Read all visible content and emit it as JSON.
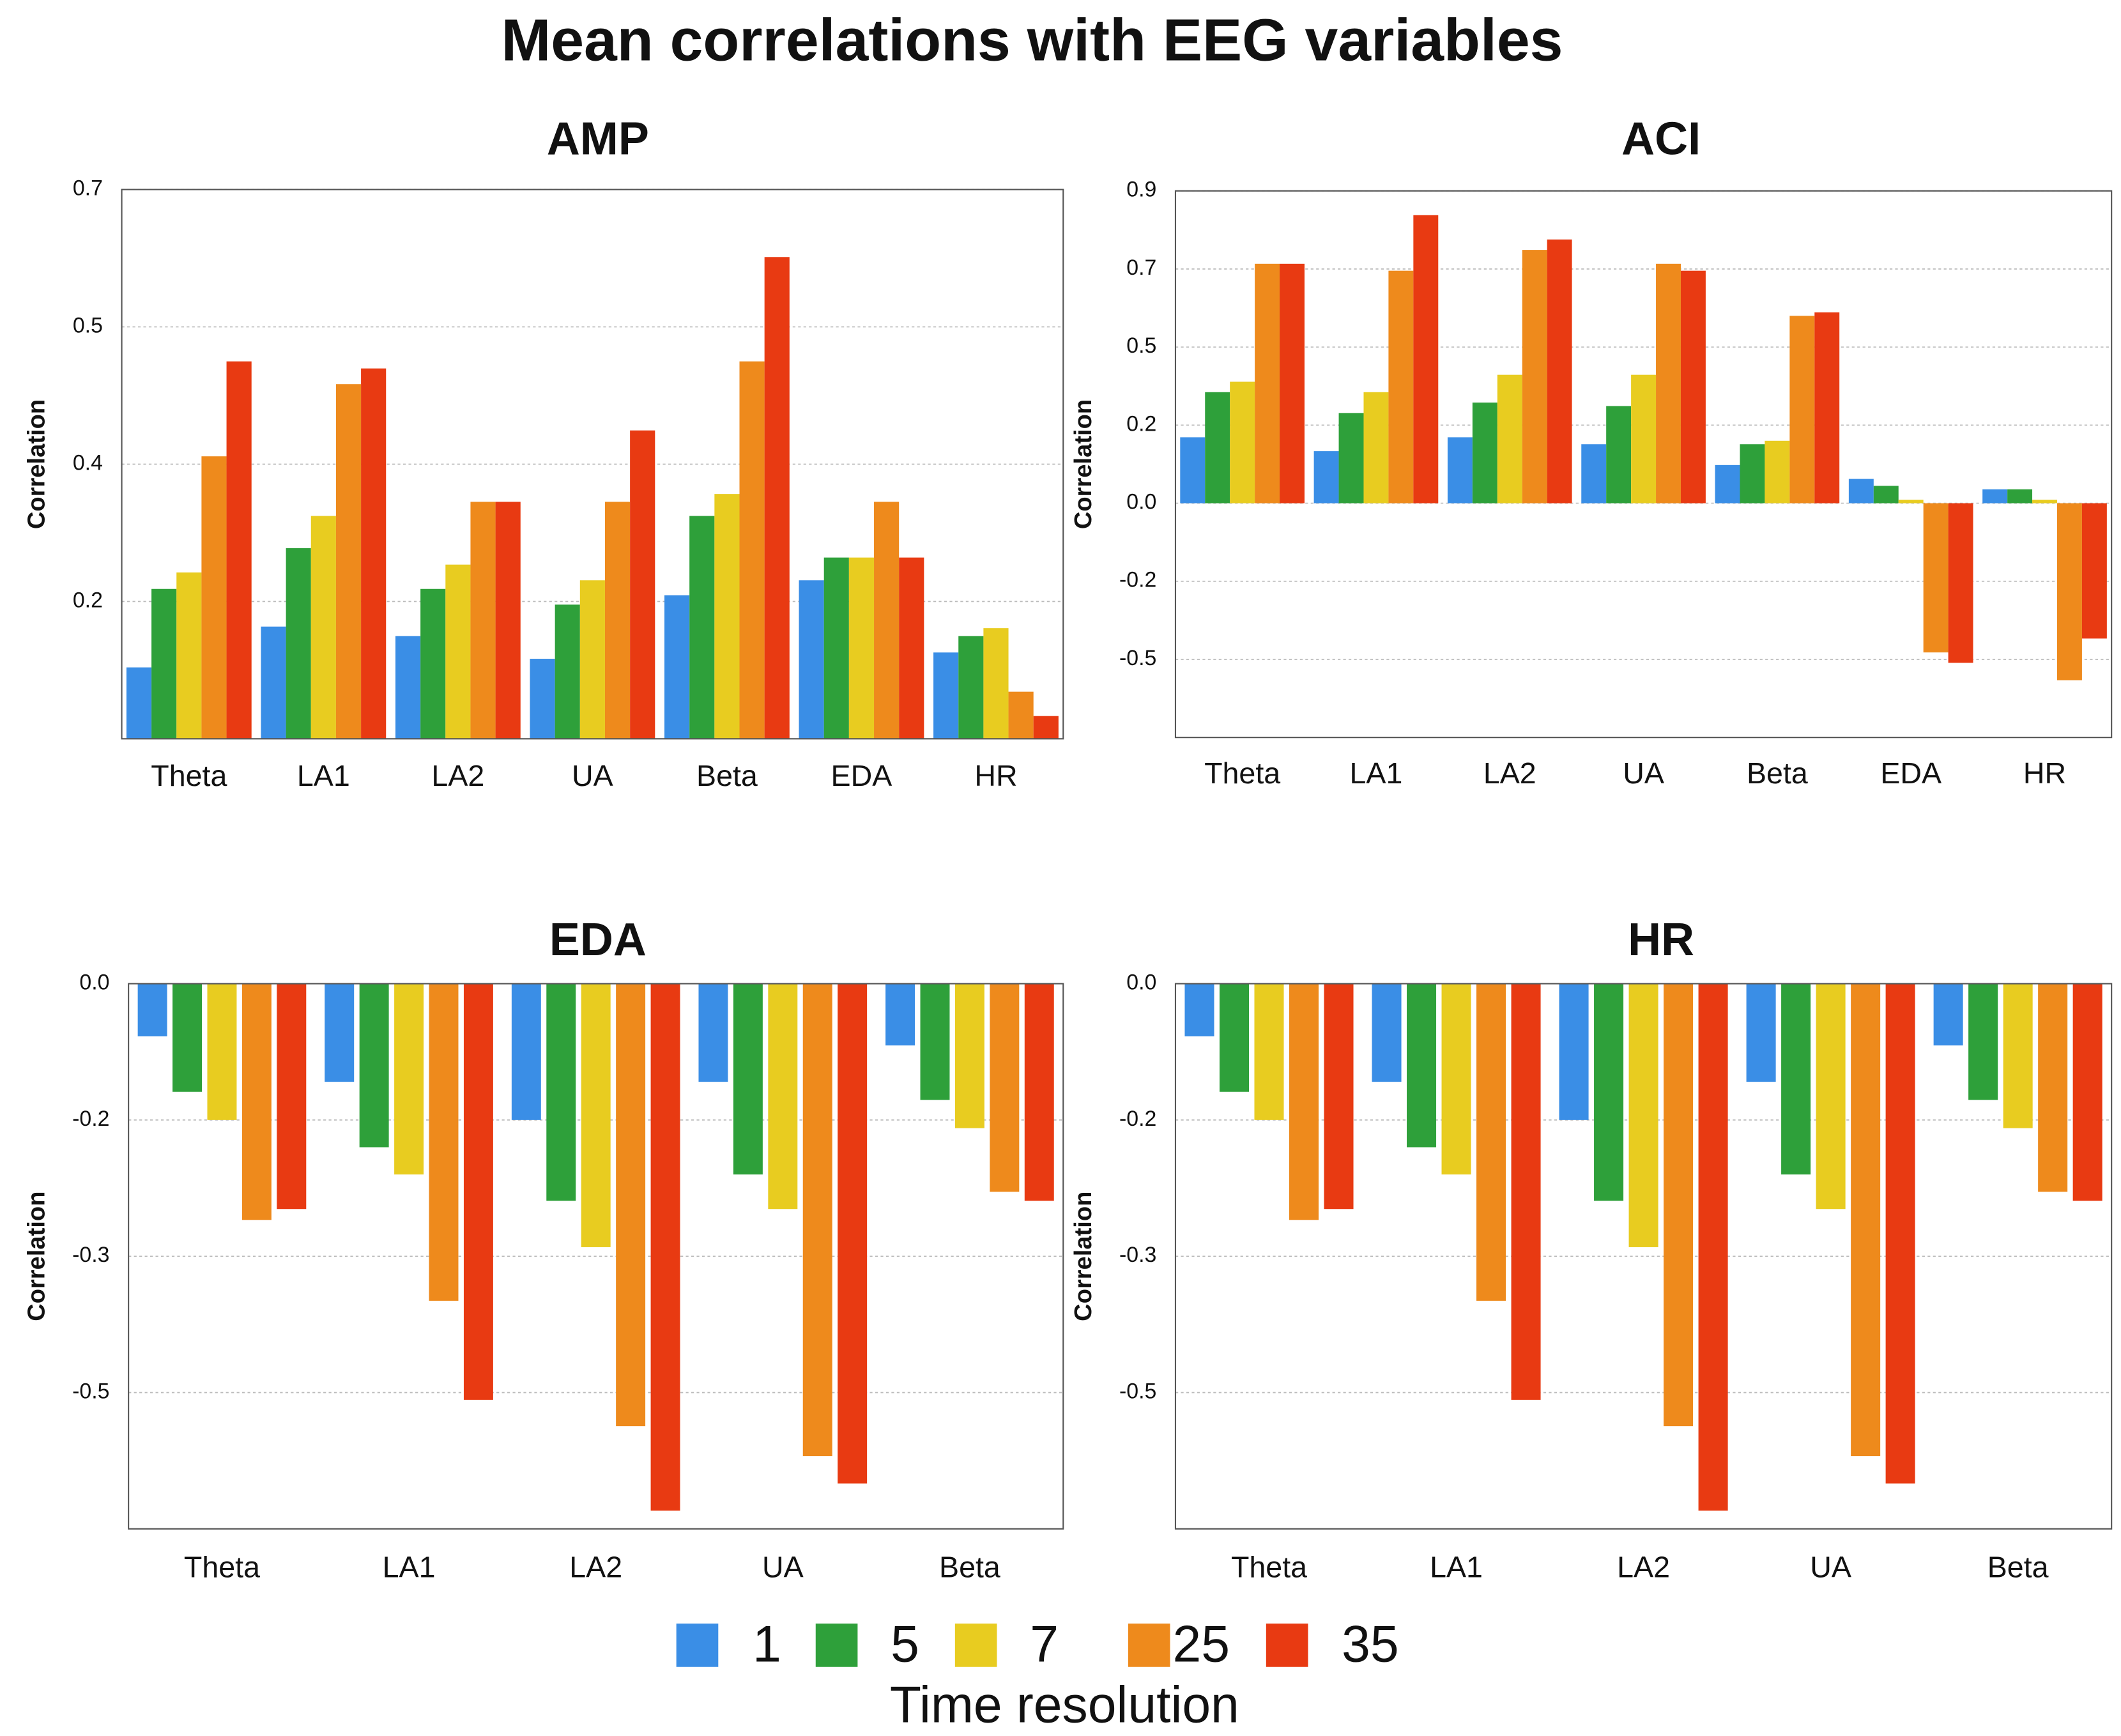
{
  "title": "Mean correlations with EEG variables",
  "legend_title": "Time resolution",
  "chart_data": [
    {
      "type": "bar",
      "title": "AMP",
      "y_label": "Correlation",
      "categories": [
        "Theta",
        "LA1",
        "LA2",
        "UA",
        "Beta",
        "EDA",
        "HR"
      ],
      "ylim": [
        0,
        0.7
      ],
      "yticks": [
        {
          "value": 0.175,
          "label": "0.2"
        },
        {
          "value": 0.35,
          "label": "0.4"
        },
        {
          "value": 0.525,
          "label": "0.5"
        },
        0.7
      ],
      "grid": true,
      "series": [
        {
          "name": "1",
          "color": "#3a8ee6",
          "values": [
            0.091,
            0.143,
            0.131,
            0.102,
            0.183,
            0.202,
            0.11
          ]
        },
        {
          "name": "5",
          "color": "#2ea03a",
          "values": [
            0.191,
            0.243,
            0.191,
            0.171,
            0.284,
            0.231,
            0.131
          ]
        },
        {
          "name": "7",
          "color": "#e8cc20",
          "values": [
            0.212,
            0.284,
            0.222,
            0.202,
            0.312,
            0.231,
            0.141
          ]
        },
        {
          "name": "25",
          "color": "#ee8a1c",
          "values": [
            0.36,
            0.452,
            0.302,
            0.302,
            0.481,
            0.302,
            0.06
          ]
        },
        {
          "name": "35",
          "color": "#e83a12",
          "values": [
            0.481,
            0.472,
            0.302,
            0.393,
            0.614,
            0.231,
            0.029
          ]
        }
      ]
    },
    {
      "type": "bar",
      "title": "ACI",
      "y_label": "Correlation",
      "categories": [
        "Theta",
        "LA1",
        "LA2",
        "UA",
        "Beta",
        "EDA",
        "HR"
      ],
      "ylim": [
        -0.675,
        0.9
      ],
      "yticks": [
        {
          "value": -0.45,
          "label": "-0.5"
        },
        {
          "value": -0.225,
          "label": "-0.2"
        },
        {
          "value": 0,
          "label": "0.0"
        },
        {
          "value": 0.225,
          "label": "0.2"
        },
        {
          "value": 0.45,
          "label": "0.5"
        },
        {
          "value": 0.675,
          "label": "0.7"
        },
        0.9
      ],
      "grid": true,
      "series": [
        {
          "name": "1",
          "color": "#3a8ee6",
          "values": [
            0.19,
            0.15,
            0.19,
            0.17,
            0.11,
            0.07,
            0.04
          ]
        },
        {
          "name": "5",
          "color": "#2ea03a",
          "values": [
            0.32,
            0.26,
            0.29,
            0.28,
            0.17,
            0.05,
            0.04
          ]
        },
        {
          "name": "7",
          "color": "#e8cc20",
          "values": [
            0.35,
            0.32,
            0.37,
            0.37,
            0.18,
            0.01,
            0.01
          ]
        },
        {
          "name": "25",
          "color": "#ee8a1c",
          "values": [
            0.69,
            0.67,
            0.73,
            0.69,
            0.54,
            -0.43,
            -0.51
          ]
        },
        {
          "name": "35",
          "color": "#e83a12",
          "values": [
            0.69,
            0.83,
            0.76,
            0.67,
            0.55,
            -0.46,
            -0.39
          ]
        }
      ]
    },
    {
      "type": "bar",
      "title": "EDA",
      "y_label": "Correlation",
      "categories": [
        "Theta",
        "LA1",
        "LA2",
        "UA",
        "Beta"
      ],
      "ylim": [
        -0.6,
        0
      ],
      "yticks": [
        {
          "value": -0.45,
          "label": "-0.5"
        },
        {
          "value": -0.3,
          "label": "-0.3"
        },
        {
          "value": -0.15,
          "label": "-0.2"
        },
        {
          "value": 0,
          "label": "0.0"
        }
      ],
      "grid": true,
      "series": [
        {
          "name": "1",
          "color": "#3a8ee6",
          "values": [
            -0.058,
            -0.108,
            -0.15,
            -0.108,
            -0.068
          ]
        },
        {
          "name": "5",
          "color": "#2ea03a",
          "values": [
            -0.119,
            -0.18,
            -0.239,
            -0.21,
            -0.128
          ]
        },
        {
          "name": "7",
          "color": "#e8cc20",
          "values": [
            -0.15,
            -0.21,
            -0.29,
            -0.248,
            -0.159
          ]
        },
        {
          "name": "25",
          "color": "#ee8a1c",
          "values": [
            -0.26,
            -0.349,
            -0.487,
            -0.52,
            -0.229
          ]
        },
        {
          "name": "35",
          "color": "#e83a12",
          "values": [
            -0.248,
            -0.458,
            -0.58,
            -0.55,
            -0.239
          ]
        }
      ]
    },
    {
      "type": "bar",
      "title": "HR",
      "y_label": "Correlation",
      "categories": [
        "Theta",
        "LA1",
        "LA2",
        "UA",
        "Beta"
      ],
      "ylim": [
        -0.6,
        0
      ],
      "yticks": [
        {
          "value": -0.45,
          "label": "-0.5"
        },
        {
          "value": -0.3,
          "label": "-0.3"
        },
        {
          "value": -0.15,
          "label": "-0.2"
        },
        {
          "value": 0,
          "label": "0.0"
        }
      ],
      "grid": true,
      "series": [
        {
          "name": "1",
          "color": "#3a8ee6",
          "values": [
            -0.058,
            -0.108,
            -0.15,
            -0.108,
            -0.068
          ]
        },
        {
          "name": "5",
          "color": "#2ea03a",
          "values": [
            -0.119,
            -0.18,
            -0.239,
            -0.21,
            -0.128
          ]
        },
        {
          "name": "7",
          "color": "#e8cc20",
          "values": [
            -0.15,
            -0.21,
            -0.29,
            -0.248,
            -0.159
          ]
        },
        {
          "name": "25",
          "color": "#ee8a1c",
          "values": [
            -0.26,
            -0.349,
            -0.487,
            -0.52,
            -0.229
          ]
        },
        {
          "name": "35",
          "color": "#e83a12",
          "values": [
            -0.248,
            -0.458,
            -0.58,
            -0.55,
            -0.239
          ]
        }
      ]
    }
  ]
}
